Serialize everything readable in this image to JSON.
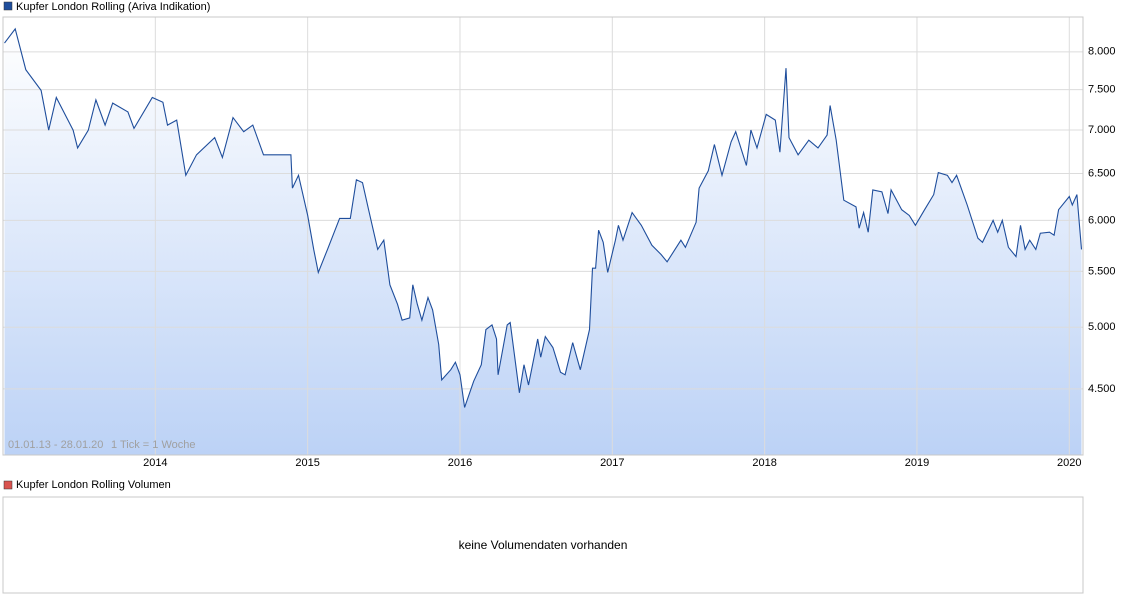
{
  "chart_data": {
    "type": "line",
    "annotations": {
      "range": "01.01.13 - 28.01.20",
      "tick": "1 Tick = 1 Woche"
    },
    "log_scale": true,
    "grid": true,
    "fill_color": "#bcd2f6",
    "xlim": [
      2013.0,
      2020.09
    ],
    "xticks": [
      2014,
      2015,
      2016,
      2017,
      2018,
      2019,
      2020
    ],
    "ylim": [
      4020,
      8490
    ],
    "yticks": [
      {
        "value": 4500,
        "label": "4.500"
      },
      {
        "value": 5000,
        "label": "5.000"
      },
      {
        "value": 5500,
        "label": "5.500"
      },
      {
        "value": 6000,
        "label": "6.000"
      },
      {
        "value": 6500,
        "label": "6.500"
      },
      {
        "value": 7000,
        "label": "7.000"
      },
      {
        "value": 7500,
        "label": "7.500"
      },
      {
        "value": 8000,
        "label": "8.000"
      }
    ],
    "x": [
      2013.01,
      2013.08,
      2013.15,
      2013.25,
      2013.3,
      2013.35,
      2013.46,
      2013.49,
      2013.56,
      2013.61,
      2013.67,
      2013.72,
      2013.82,
      2013.86,
      2013.98,
      2014.05,
      2014.08,
      2014.14,
      2014.2,
      2014.27,
      2014.39,
      2014.44,
      2014.51,
      2014.58,
      2014.64,
      2014.71,
      2014.84,
      2014.89,
      2014.9,
      2014.94,
      2015.0,
      2015.04,
      2015.07,
      2015.13,
      2015.21,
      2015.28,
      2015.32,
      2015.36,
      2015.4,
      2015.46,
      2015.5,
      2015.54,
      2015.59,
      2015.62,
      2015.67,
      2015.69,
      2015.72,
      2015.75,
      2015.79,
      2015.82,
      2015.86,
      2015.88,
      2015.94,
      2015.97,
      2016.0,
      2016.03,
      2016.09,
      2016.14,
      2016.17,
      2016.21,
      2016.24,
      2016.25,
      2016.31,
      2016.33,
      2016.39,
      2016.42,
      2016.45,
      2016.51,
      2016.53,
      2016.56,
      2016.61,
      2016.66,
      2016.69,
      2016.74,
      2016.79,
      2016.85,
      2016.87,
      2016.89,
      2016.91,
      2016.94,
      2016.97,
      2017.02,
      2017.04,
      2017.07,
      2017.13,
      2017.19,
      2017.26,
      2017.32,
      2017.36,
      2017.45,
      2017.48,
      2017.55,
      2017.57,
      2017.63,
      2017.67,
      2017.72,
      2017.78,
      2017.81,
      2017.88,
      2017.91,
      2017.95,
      2018.01,
      2018.07,
      2018.1,
      2018.14,
      2018.16,
      2018.22,
      2018.29,
      2018.35,
      2018.41,
      2018.43,
      2018.47,
      2018.52,
      2018.6,
      2018.62,
      2018.65,
      2018.68,
      2018.71,
      2018.77,
      2018.81,
      2018.83,
      2018.9,
      2018.95,
      2018.99,
      2019.05,
      2019.11,
      2019.14,
      2019.2,
      2019.23,
      2019.26,
      2019.33,
      2019.4,
      2019.43,
      2019.5,
      2019.53,
      2019.56,
      2019.6,
      2019.65,
      2019.68,
      2019.71,
      2019.74,
      2019.78,
      2019.81,
      2019.87,
      2019.9,
      2019.93,
      2020.0,
      2020.02,
      2020.05,
      2020.08
    ],
    "series": [
      {
        "name": "Kupfer London Rolling (Ariva Indikation)",
        "color": "#1f4e9c",
        "values": [
          8120,
          8320,
          7760,
          7490,
          7000,
          7400,
          7000,
          6790,
          7000,
          7370,
          7060,
          7330,
          7220,
          7020,
          7400,
          7340,
          7060,
          7120,
          6480,
          6710,
          6910,
          6680,
          7150,
          6980,
          7060,
          6710,
          6710,
          6710,
          6340,
          6480,
          6050,
          5710,
          5490,
          5710,
          6020,
          6020,
          6430,
          6400,
          6110,
          5710,
          5800,
          5375,
          5200,
          5060,
          5080,
          5375,
          5200,
          5060,
          5260,
          5150,
          4855,
          4570,
          4650,
          4710,
          4610,
          4360,
          4560,
          4690,
          4980,
          5020,
          4900,
          4610,
          5020,
          5040,
          4470,
          4690,
          4530,
          4900,
          4750,
          4920,
          4830,
          4630,
          4610,
          4870,
          4650,
          4980,
          5530,
          5530,
          5900,
          5780,
          5490,
          5800,
          5950,
          5800,
          6080,
          5950,
          5750,
          5660,
          5590,
          5800,
          5730,
          5980,
          6340,
          6530,
          6830,
          6480,
          6860,
          6980,
          6590,
          7000,
          6790,
          7190,
          7120,
          6740,
          7780,
          6910,
          6710,
          6880,
          6790,
          6940,
          7300,
          6880,
          6210,
          6140,
          5920,
          6080,
          5880,
          6320,
          6300,
          6070,
          6320,
          6110,
          6050,
          5950,
          6110,
          6270,
          6510,
          6480,
          6400,
          6480,
          6160,
          5820,
          5780,
          6000,
          5880,
          6000,
          5730,
          5640,
          5950,
          5710,
          5800,
          5710,
          5870,
          5880,
          5850,
          6110,
          6250,
          6160,
          6270,
          5710
        ]
      }
    ]
  },
  "volume_panel": {
    "legend": "Kupfer London Rolling Volumen",
    "color": "#d9534f",
    "message": "keine Volumendaten vorhanden"
  }
}
